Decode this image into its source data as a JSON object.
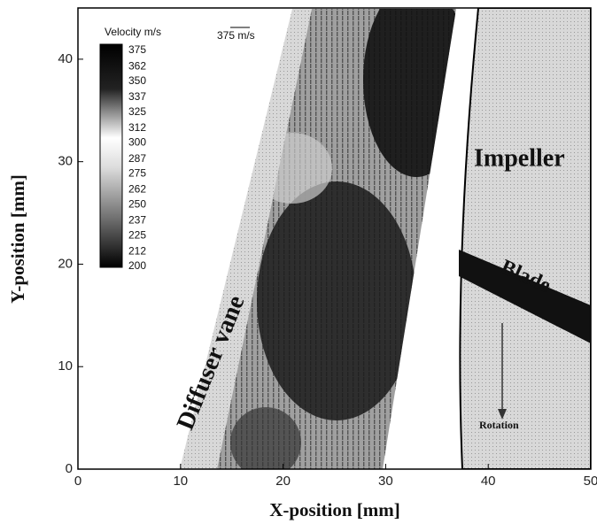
{
  "chart_data": {
    "type": "vector-field",
    "xlabel": "X-position [mm]",
    "ylabel": "Y-position [mm]",
    "xlim": [
      0,
      50
    ],
    "ylim": [
      0,
      45
    ],
    "xticks": [
      0,
      10,
      20,
      30,
      40,
      50
    ],
    "yticks": [
      0,
      10,
      20,
      30,
      40
    ],
    "colorbar": {
      "title": "Velocity m/s",
      "clim": [
        200,
        375
      ],
      "ticks": [
        375,
        362,
        350,
        337,
        325,
        312,
        300,
        287,
        275,
        262,
        250,
        237,
        225,
        212,
        200
      ]
    },
    "reference_vector": "375 m/s",
    "annotations": [
      "Impeller",
      "Blade",
      "Diffuser vane",
      "Rotation"
    ]
  }
}
